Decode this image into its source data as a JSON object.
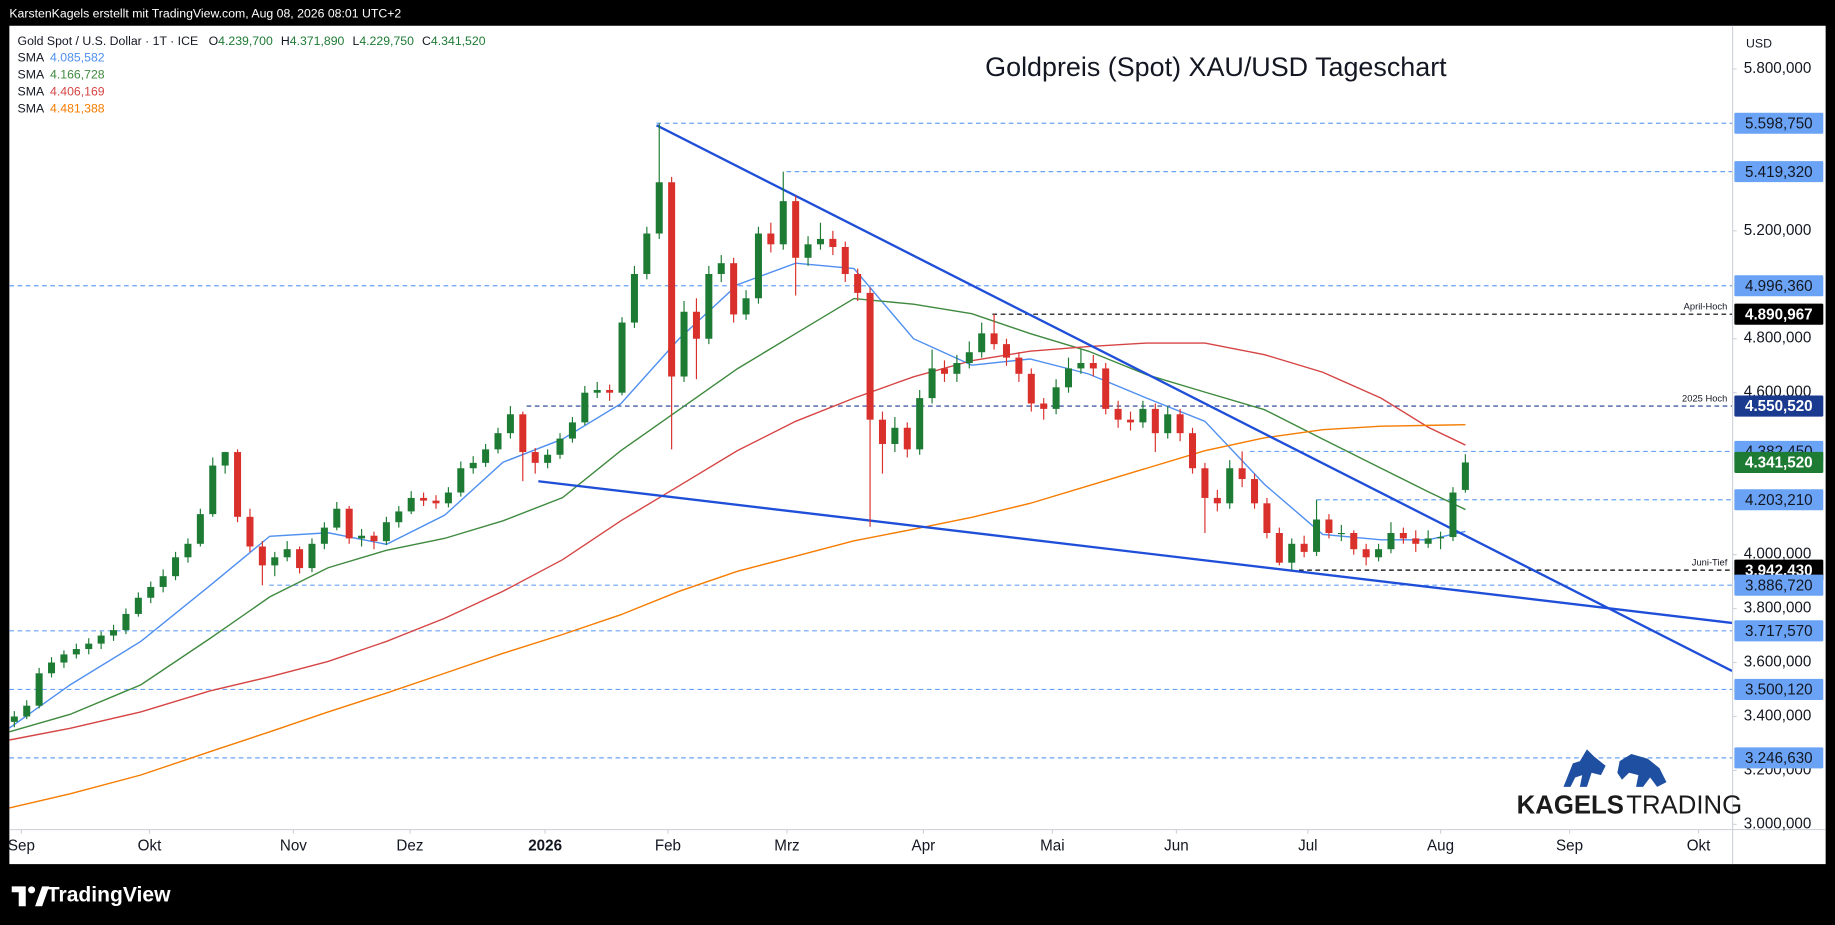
{
  "top_bar": "KarstenKagels erstellt mit TradingView.com, Aug 08, 2026 08:01 UTC+2",
  "footer_logo": "TradingView",
  "branding": {
    "bold": "KAGELS",
    "light": "TRADING"
  },
  "chart_data": {
    "type": "candlestick",
    "title": "Goldpreis (Spot) XAU/USD Tageschart",
    "symbol": "Gold Spot / U.S. Dollar · 1T · ICE",
    "ohlc_labels": [
      {
        "key": "O",
        "value": "4.239,700"
      },
      {
        "key": "H",
        "value": "4.371,890"
      },
      {
        "key": "L",
        "value": "4.229,750"
      },
      {
        "key": "C",
        "value": "4.341,520"
      }
    ],
    "currency": "USD",
    "up_color": "#1e7b34",
    "down_color": "#d9302c",
    "candles": [
      [
        3380,
        3420,
        3360,
        3400
      ],
      [
        3400,
        3460,
        3390,
        3440
      ],
      [
        3440,
        3580,
        3430,
        3560
      ],
      [
        3560,
        3620,
        3545,
        3600
      ],
      [
        3600,
        3645,
        3580,
        3630
      ],
      [
        3630,
        3670,
        3615,
        3650
      ],
      [
        3650,
        3690,
        3630,
        3670
      ],
      [
        3670,
        3715,
        3650,
        3700
      ],
      [
        3700,
        3740,
        3680,
        3720
      ],
      [
        3720,
        3800,
        3705,
        3780
      ],
      [
        3780,
        3860,
        3770,
        3840
      ],
      [
        3840,
        3900,
        3820,
        3880
      ],
      [
        3880,
        3945,
        3860,
        3920
      ],
      [
        3920,
        4010,
        3905,
        3990
      ],
      [
        3990,
        4060,
        3970,
        4040
      ],
      [
        4040,
        4170,
        4030,
        4150
      ],
      [
        4150,
        4360,
        4140,
        4330
      ],
      [
        4330,
        4381,
        4300,
        4380
      ],
      [
        4380,
        4390,
        4120,
        4140
      ],
      [
        4140,
        4170,
        4010,
        4030
      ],
      [
        4030,
        4050,
        3886,
        3960
      ],
      [
        3960,
        4010,
        3920,
        3990
      ],
      [
        3990,
        4050,
        3975,
        4020
      ],
      [
        4020,
        4030,
        3930,
        3950
      ],
      [
        3950,
        4060,
        3935,
        4040
      ],
      [
        4040,
        4120,
        4020,
        4100
      ],
      [
        4100,
        4195,
        4090,
        4170
      ],
      [
        4170,
        4180,
        4040,
        4060
      ],
      [
        4060,
        4095,
        4030,
        4070
      ],
      [
        4070,
        4085,
        4020,
        4050
      ],
      [
        4050,
        4140,
        4035,
        4120
      ],
      [
        4120,
        4180,
        4100,
        4160
      ],
      [
        4160,
        4235,
        4150,
        4210
      ],
      [
        4210,
        4230,
        4180,
        4200
      ],
      [
        4200,
        4220,
        4170,
        4190
      ],
      [
        4190,
        4250,
        4175,
        4230
      ],
      [
        4230,
        4345,
        4215,
        4320
      ],
      [
        4320,
        4365,
        4300,
        4340
      ],
      [
        4340,
        4410,
        4325,
        4390
      ],
      [
        4390,
        4470,
        4375,
        4450
      ],
      [
        4450,
        4550.52,
        4430,
        4520
      ],
      [
        4520,
        4530,
        4272,
        4380
      ],
      [
        4380,
        4395,
        4300,
        4340
      ],
      [
        4340,
        4390,
        4320,
        4370
      ],
      [
        4370,
        4450,
        4355,
        4430
      ],
      [
        4430,
        4510,
        4415,
        4490
      ],
      [
        4490,
        4625,
        4480,
        4600
      ],
      [
        4600,
        4640,
        4580,
        4610
      ],
      [
        4610,
        4630,
        4570,
        4600
      ],
      [
        4600,
        4880,
        4590,
        4860
      ],
      [
        4860,
        5070,
        4840,
        5040
      ],
      [
        5040,
        5215,
        5020,
        5190
      ],
      [
        5190,
        5598.75,
        5170,
        5380
      ],
      [
        5380,
        5400,
        4390,
        4660
      ],
      [
        4660,
        4940,
        4640,
        4900
      ],
      [
        4900,
        4950,
        4650,
        4800
      ],
      [
        4800,
        5070,
        4780,
        5040
      ],
      [
        5040,
        5110,
        5010,
        5080
      ],
      [
        5080,
        5100,
        4860,
        4890
      ],
      [
        4890,
        4980,
        4870,
        4950
      ],
      [
        4950,
        5215,
        4930,
        5190
      ],
      [
        5190,
        5230,
        5120,
        5150
      ],
      [
        5150,
        5419.32,
        5130,
        5310
      ],
      [
        5310,
        5330,
        4960,
        5100
      ],
      [
        5100,
        5180,
        5070,
        5150
      ],
      [
        5150,
        5230,
        5130,
        5170
      ],
      [
        5170,
        5200,
        5110,
        5140
      ],
      [
        5140,
        5160,
        5010,
        5040
      ],
      [
        5040,
        5060,
        4940,
        4970
      ],
      [
        4970,
        4990,
        4103,
        4500
      ],
      [
        4500,
        4530,
        4300,
        4410
      ],
      [
        4410,
        4510,
        4380,
        4470
      ],
      [
        4470,
        4490,
        4360,
        4390
      ],
      [
        4390,
        4610,
        4370,
        4580
      ],
      [
        4580,
        4760,
        4560,
        4690
      ],
      [
        4690,
        4720,
        4640,
        4670
      ],
      [
        4670,
        4740,
        4640,
        4710
      ],
      [
        4710,
        4790,
        4690,
        4750
      ],
      [
        4750,
        4860,
        4730,
        4820
      ],
      [
        4820,
        4890.967,
        4760,
        4780
      ],
      [
        4780,
        4800,
        4700,
        4730
      ],
      [
        4730,
        4750,
        4640,
        4670
      ],
      [
        4670,
        4690,
        4530,
        4560
      ],
      [
        4560,
        4580,
        4500,
        4540
      ],
      [
        4540,
        4650,
        4520,
        4620
      ],
      [
        4620,
        4730,
        4600,
        4690
      ],
      [
        4690,
        4760,
        4670,
        4710
      ],
      [
        4710,
        4740,
        4660,
        4690
      ],
      [
        4690,
        4710,
        4520,
        4540
      ],
      [
        4540,
        4570,
        4470,
        4500
      ],
      [
        4500,
        4530,
        4460,
        4490
      ],
      [
        4490,
        4570,
        4470,
        4540
      ],
      [
        4540,
        4560,
        4380,
        4450
      ],
      [
        4450,
        4550,
        4430,
        4520
      ],
      [
        4520,
        4540,
        4420,
        4450
      ],
      [
        4450,
        4470,
        4300,
        4320
      ],
      [
        4320,
        4340,
        4080,
        4210
      ],
      [
        4210,
        4240,
        4160,
        4190
      ],
      [
        4190,
        4350,
        4170,
        4320
      ],
      [
        4320,
        4382.45,
        4250,
        4280
      ],
      [
        4280,
        4300,
        4170,
        4190
      ],
      [
        4190,
        4210,
        4060,
        4080
      ],
      [
        4080,
        4100,
        3960,
        3970
      ],
      [
        3970,
        4060,
        3942.43,
        4040
      ],
      [
        4040,
        4070,
        3990,
        4010
      ],
      [
        4010,
        4203.21,
        3995,
        4130
      ],
      [
        4130,
        4150,
        4060,
        4080
      ],
      [
        4080,
        4110,
        4050,
        4080
      ],
      [
        4080,
        4090,
        4000,
        4020
      ],
      [
        4020,
        4040,
        3960,
        3990
      ],
      [
        3990,
        4040,
        3975,
        4020
      ],
      [
        4020,
        4120,
        4005,
        4080
      ],
      [
        4080,
        4100,
        4040,
        4060
      ],
      [
        4060,
        4090,
        4010,
        4040
      ],
      [
        4040,
        4090,
        4025,
        4060
      ],
      [
        4060,
        4085,
        4020,
        4065
      ],
      [
        4065,
        4250,
        4050,
        4230
      ],
      [
        4239.7,
        4371.89,
        4229.75,
        4341.52
      ]
    ],
    "series": [
      {
        "name": "SMA",
        "value_label": "4.085,582",
        "color": "#4f8ff0",
        "x": [
          -0.4,
          4.5,
          10.2,
          15.8,
          20.6,
          25.3,
          30,
          34.7,
          39.4,
          44.2,
          48.9,
          53.6,
          58.3,
          63,
          67.7,
          72.5,
          77.2,
          81.9,
          86.6,
          91.3,
          96,
          100.8,
          105.5,
          110.2,
          114,
          117
        ],
        "values": [
          3357,
          3517,
          3678,
          3886,
          4068,
          4081,
          4038,
          4146,
          4342,
          4428,
          4559,
          4800,
          5000,
          5080,
          5060,
          4800,
          4702,
          4725,
          4670,
          4580,
          4494,
          4260,
          4075,
          4055,
          4055,
          4085.582
        ]
      },
      {
        "name": "SMA",
        "value_label": "4.166,728",
        "color": "#3f8a3f",
        "x": [
          -0.4,
          4.5,
          10.2,
          15.8,
          20.6,
          25.3,
          30,
          34.7,
          39.4,
          44.2,
          48.9,
          53.6,
          58.3,
          63,
          67.7,
          72.5,
          77.2,
          81.9,
          86.6,
          91.3,
          96,
          100.8,
          105.5,
          110.2,
          114,
          117
        ],
        "values": [
          3343,
          3408,
          3517,
          3690,
          3843,
          3951,
          4016,
          4060,
          4125,
          4211,
          4385,
          4537,
          4689,
          4819,
          4949,
          4928,
          4893,
          4819,
          4754,
          4667,
          4602,
          4537,
          4428,
          4320,
          4233,
          4166.728
        ]
      },
      {
        "name": "SMA",
        "value_label": "4.406,169",
        "color": "#d64545",
        "x": [
          -0.4,
          4.5,
          10.2,
          15.8,
          20.6,
          25.3,
          30,
          34.7,
          39.4,
          44.2,
          48.9,
          53.6,
          58.3,
          63,
          67.7,
          72.5,
          77.2,
          81.9,
          86.6,
          91.3,
          96,
          100.8,
          105.5,
          110.2,
          114,
          117
        ],
        "values": [
          3313,
          3356,
          3417,
          3495,
          3547,
          3604,
          3678,
          3764,
          3864,
          3981,
          4125,
          4255,
          4385,
          4494,
          4580,
          4659,
          4719,
          4754,
          4771,
          4784,
          4784,
          4741,
          4676,
          4580,
          4472,
          4406.169
        ]
      },
      {
        "name": "SMA",
        "value_label": "4.481,388",
        "color": "#f57c00",
        "x": [
          -0.4,
          4.5,
          10.2,
          15.8,
          20.6,
          25.3,
          30,
          34.7,
          39.4,
          44.2,
          48.9,
          53.6,
          58.3,
          63,
          67.7,
          72.5,
          77.2,
          81.9,
          86.6,
          91.3,
          96,
          100.8,
          105.5,
          110.2,
          114,
          117
        ],
        "values": [
          3061,
          3113,
          3183,
          3270,
          3343,
          3417,
          3487,
          3560,
          3634,
          3704,
          3777,
          3864,
          3938,
          3994,
          4051,
          4094,
          4138,
          4190,
          4255,
          4320,
          4385,
          4433,
          4463,
          4476,
          4479,
          4481.388
        ]
      }
    ],
    "levels": [
      {
        "value": 5598.75,
        "label": "5.598,750",
        "color": "#6aa3f5"
      },
      {
        "value": 5419.32,
        "label": "5.419,320",
        "color": "#6aa3f5"
      },
      {
        "value": 4996.36,
        "label": "4.996,360",
        "color": "#6aa3f5"
      },
      {
        "value": 4890.967,
        "label": "4.890,967",
        "color": "#000000",
        "note": "April-Hoch"
      },
      {
        "value": 4550.52,
        "label": "4.550,520",
        "color": "#1a3a8f",
        "note": "2025 Hoch"
      },
      {
        "value": 4382.45,
        "label": "4.382,450",
        "color": "#6aa3f5"
      },
      {
        "value": 4341.52,
        "label": "4.341,520",
        "color": "#1e7b34"
      },
      {
        "value": 4203.21,
        "label": "4.203,210",
        "color": "#6aa3f5"
      },
      {
        "value": 3942.43,
        "label": "3.942,430",
        "color": "#000000",
        "note": "Juni-Tief"
      },
      {
        "value": 3886.72,
        "label": "3.886,720",
        "color": "#6aa3f5"
      },
      {
        "value": 3717.57,
        "label": "3.717,570",
        "color": "#6aa3f5"
      },
      {
        "value": 3500.12,
        "label": "3.500,120",
        "color": "#6aa3f5"
      },
      {
        "value": 3246.63,
        "label": "3.246,630",
        "color": "#6aa3f5"
      }
    ],
    "xlim": [
      -0.4,
      138.5
    ],
    "xticks": [
      {
        "value": 0.57,
        "label": "Sep"
      },
      {
        "value": 10.9,
        "label": "Okt"
      },
      {
        "value": 22.5,
        "label": "Nov"
      },
      {
        "value": 31.9,
        "label": "Dez"
      },
      {
        "value": 42.8,
        "label": "2026"
      },
      {
        "value": 52.7,
        "label": "Feb"
      },
      {
        "value": 62.3,
        "label": "Mrz"
      },
      {
        "value": 73.3,
        "label": "Apr"
      },
      {
        "value": 83.7,
        "label": "Mai"
      },
      {
        "value": 93.7,
        "label": "Jun"
      },
      {
        "value": 104.3,
        "label": "Jul"
      },
      {
        "value": 115,
        "label": "Aug"
      },
      {
        "value": 125.4,
        "label": "Sep"
      },
      {
        "value": 135.8,
        "label": "Okt"
      }
    ],
    "ylim": [
      2983,
      5960
    ],
    "yticks": [
      {
        "value": 3000,
        "label": "3.000,000"
      },
      {
        "value": 3200,
        "label": "3.200,000"
      },
      {
        "value": 3400,
        "label": "3.400,000"
      },
      {
        "value": 3600,
        "label": "3.600,000"
      },
      {
        "value": 3800,
        "label": "3.800,000"
      },
      {
        "value": 4000,
        "label": "4.000,000"
      },
      {
        "value": 4600,
        "label": "4.600,000"
      },
      {
        "value": 4800,
        "label": "4.800,000"
      },
      {
        "value": 5200,
        "label": "5.200,000"
      },
      {
        "value": 5800,
        "label": "5.800,000"
      }
    ]
  }
}
